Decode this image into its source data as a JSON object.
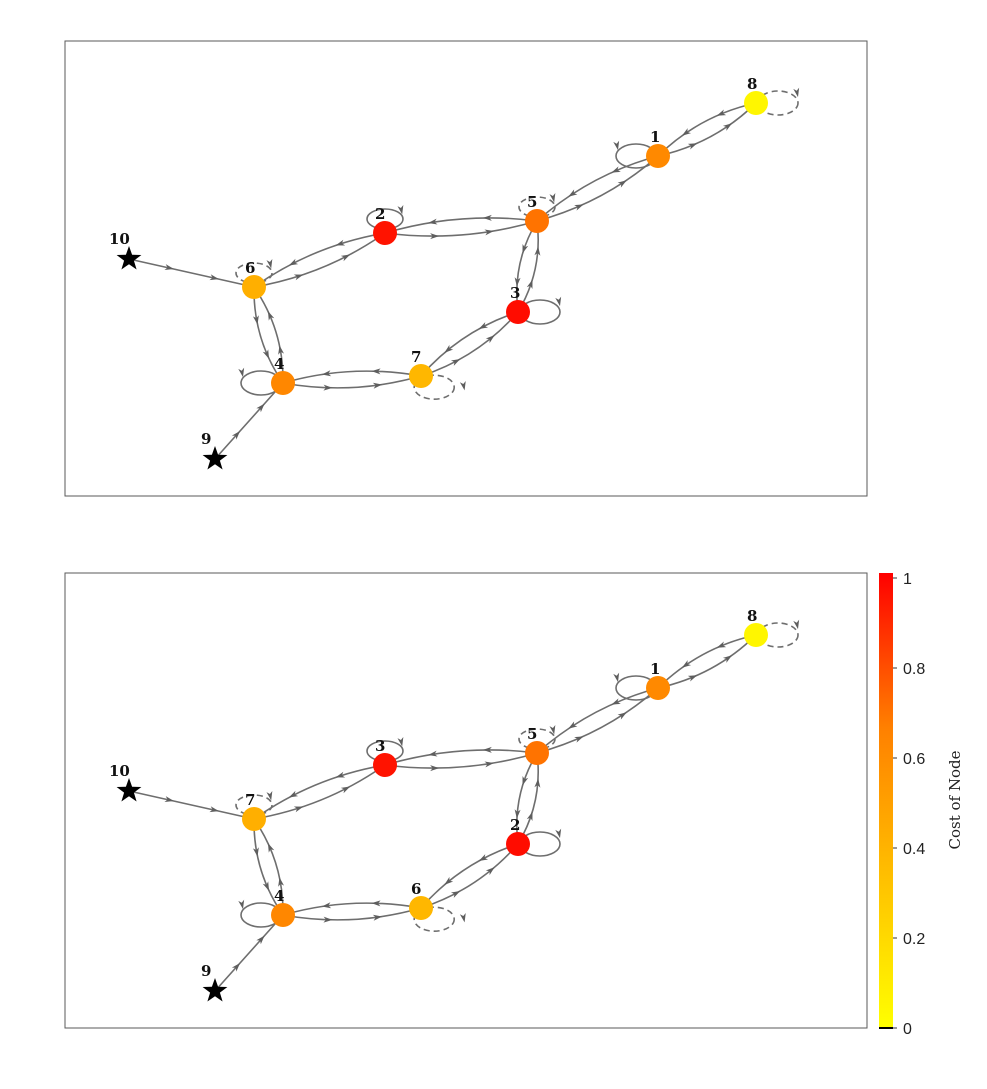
{
  "panels": [
    {
      "id": "top",
      "nodes": [
        {
          "id": "a",
          "label": "1",
          "cost": 0.62,
          "kind": "circle"
        },
        {
          "id": "b",
          "label": "2",
          "cost": 0.95,
          "kind": "circle"
        },
        {
          "id": "c",
          "label": "3",
          "cost": 0.97,
          "kind": "circle"
        },
        {
          "id": "d",
          "label": "4",
          "cost": 0.63,
          "kind": "circle"
        },
        {
          "id": "e",
          "label": "5",
          "cost": 0.7,
          "kind": "circle"
        },
        {
          "id": "f",
          "label": "6",
          "cost": 0.42,
          "kind": "circle"
        },
        {
          "id": "g",
          "label": "7",
          "cost": 0.38,
          "kind": "circle"
        },
        {
          "id": "h",
          "label": "8",
          "cost": 0.05,
          "kind": "circle"
        },
        {
          "id": "s9",
          "label": "9",
          "kind": "star"
        },
        {
          "id": "s10",
          "label": "10",
          "kind": "star"
        }
      ]
    },
    {
      "id": "bottom",
      "nodes": [
        {
          "id": "a",
          "label": "1",
          "cost": 0.62,
          "kind": "circle"
        },
        {
          "id": "b",
          "label": "3",
          "cost": 0.95,
          "kind": "circle"
        },
        {
          "id": "c",
          "label": "2",
          "cost": 0.97,
          "kind": "circle"
        },
        {
          "id": "d",
          "label": "4",
          "cost": 0.63,
          "kind": "circle"
        },
        {
          "id": "e",
          "label": "5",
          "cost": 0.7,
          "kind": "circle"
        },
        {
          "id": "f",
          "label": "7",
          "cost": 0.42,
          "kind": "circle"
        },
        {
          "id": "g",
          "label": "6",
          "cost": 0.38,
          "kind": "circle"
        },
        {
          "id": "h",
          "label": "8",
          "cost": 0.05,
          "kind": "circle"
        },
        {
          "id": "s9",
          "label": "9",
          "kind": "star"
        },
        {
          "id": "s10",
          "label": "10",
          "kind": "star"
        }
      ]
    }
  ],
  "edges": [
    {
      "from": "h",
      "to": "a",
      "bend": 16
    },
    {
      "from": "a",
      "to": "h",
      "bend": 16
    },
    {
      "from": "a",
      "to": "e",
      "bend": 16
    },
    {
      "from": "e",
      "to": "a",
      "bend": 16
    },
    {
      "from": "e",
      "to": "b",
      "bend": 16
    },
    {
      "from": "b",
      "to": "e",
      "bend": 16
    },
    {
      "from": "b",
      "to": "f",
      "bend": 16
    },
    {
      "from": "f",
      "to": "b",
      "bend": 16
    },
    {
      "from": "e",
      "to": "c",
      "bend": 16
    },
    {
      "from": "c",
      "to": "e",
      "bend": 16
    },
    {
      "from": "c",
      "to": "g",
      "bend": 16
    },
    {
      "from": "g",
      "to": "c",
      "bend": 16
    },
    {
      "from": "g",
      "to": "d",
      "bend": 16
    },
    {
      "from": "d",
      "to": "g",
      "bend": 16
    },
    {
      "from": "f",
      "to": "d",
      "bend": 16
    },
    {
      "from": "d",
      "to": "f",
      "bend": 16
    },
    {
      "from": "s10",
      "to": "f",
      "bend": 0
    },
    {
      "from": "s9",
      "to": "d",
      "bend": 0
    }
  ],
  "self_loops": [
    {
      "node": "a",
      "dir": "left",
      "dashed": false
    },
    {
      "node": "b",
      "dir": "up",
      "dashed": false
    },
    {
      "node": "e",
      "dir": "up",
      "dashed": true
    },
    {
      "node": "f",
      "dir": "up",
      "dashed": true
    },
    {
      "node": "d",
      "dir": "left",
      "dashed": false
    },
    {
      "node": "g",
      "dir": "down-right",
      "dashed": true
    },
    {
      "node": "c",
      "dir": "right",
      "dashed": false
    },
    {
      "node": "h",
      "dir": "right",
      "dashed": true
    }
  ],
  "colorbar": {
    "title": "Cost of Node",
    "min": 0,
    "max": 1,
    "ticks": [
      "0",
      "0.2",
      "0.4",
      "0.6",
      "0.8",
      "1"
    ],
    "stops": [
      "#ffff00",
      "#ffc000",
      "#ff8000",
      "#ff0000"
    ]
  },
  "colors": {
    "star": "#000000",
    "edge": "#6e6e6e"
  }
}
